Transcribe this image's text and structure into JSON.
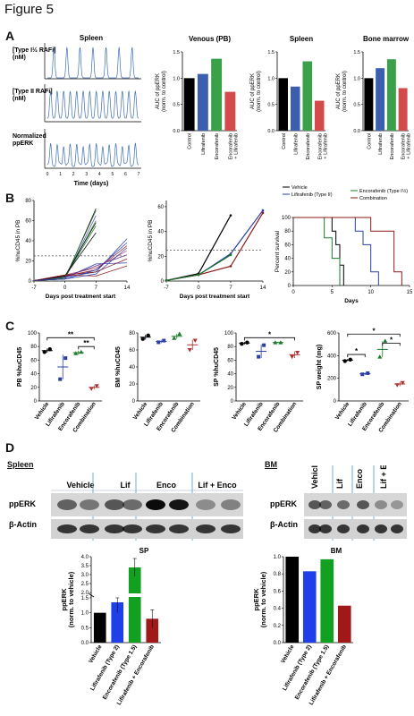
{
  "figure_title": "Figure 5",
  "panels": {
    "A": "A",
    "B": "B",
    "C": "C",
    "D": "D"
  },
  "panel_a": {
    "pk_title": "Spleen",
    "pk_rows": [
      "[Type I½ RAFi]\n(nM)",
      "[Type II RAFi]\n(nM)",
      "Normalized\nppERK"
    ],
    "pk_xticks": [
      "0",
      "1",
      "2",
      "3",
      "4",
      "5",
      "6",
      "7"
    ],
    "pk_xlabel": "Time (days)"
  },
  "chart_data": [
    {
      "id": "a-venous",
      "type": "bar",
      "title": "Venous (PB)",
      "ylabel": "AUC of ppERK\n(norm. to control)",
      "ylim": [
        0,
        1.5
      ],
      "yticks": [
        "0.0",
        "0.5",
        "1.0",
        "1.5"
      ],
      "categories": [
        "Control",
        "Lifirafenib",
        "Encorafenib",
        "Encorafenib\n+ Lifirafenib"
      ],
      "values": [
        1.0,
        1.08,
        1.37,
        0.74
      ],
      "colors": [
        "#000000",
        "#3b5fae",
        "#3aa04a",
        "#d34a4a"
      ]
    },
    {
      "id": "a-spleen",
      "type": "bar",
      "title": "Spleen",
      "ylabel": "AUC of ppERK\n(norm. to control)",
      "ylim": [
        0,
        1.5
      ],
      "yticks": [
        "0.0",
        "0.5",
        "1.0",
        "1.5"
      ],
      "categories": [
        "Control",
        "Lifirafenib",
        "Encorafenib",
        "Encorafenib\n+ Lifirafenib"
      ],
      "values": [
        1.0,
        0.84,
        1.32,
        0.57
      ],
      "colors": [
        "#000000",
        "#3b5fae",
        "#3aa04a",
        "#d34a4a"
      ]
    },
    {
      "id": "a-bm",
      "type": "bar",
      "title": "Bone marrow",
      "ylabel": "AUC of ppERK\n(norm. to control)",
      "ylim": [
        0,
        1.5
      ],
      "yticks": [
        "0.0",
        "0.5",
        "1.0",
        "1.5"
      ],
      "categories": [
        "Control",
        "Lifirafenib",
        "Encorafenib",
        "Encorafenib\n+ Lifirafenib"
      ],
      "values": [
        1.0,
        1.19,
        1.36,
        0.81
      ],
      "colors": [
        "#000000",
        "#3b5fae",
        "#3aa04a",
        "#d34a4a"
      ]
    },
    {
      "id": "b-indiv",
      "type": "line",
      "ylabel": "%huCD45 in PB",
      "xlabel": "Days post treatment start",
      "xticks": [
        -7,
        0,
        7,
        14
      ],
      "yticks": [
        0,
        20,
        40,
        60,
        80
      ],
      "ylim": [
        0,
        80
      ],
      "xlim": [
        -7,
        14
      ],
      "threshold": 25
    },
    {
      "id": "b-mean",
      "type": "line",
      "ylabel": "%huCD45 in PB",
      "xlabel": "Days post treatment start",
      "xticks": [
        -7,
        0,
        7,
        14
      ],
      "yticks": [
        0,
        20,
        40,
        60
      ],
      "ylim": [
        0,
        65
      ],
      "xlim": [
        -7,
        14
      ],
      "threshold": 25,
      "series": [
        {
          "color": "#000000",
          "x": [
            -7,
            0,
            7
          ],
          "y": [
            0.5,
            6,
            53
          ]
        },
        {
          "color": "#2c3fa6",
          "x": [
            -7,
            0,
            7,
            14
          ],
          "y": [
            0.5,
            5,
            22,
            57
          ]
        },
        {
          "color": "#8b1a1a",
          "x": [
            -7,
            0,
            7,
            14
          ],
          "y": [
            0.5,
            5,
            12,
            55
          ]
        },
        {
          "color": "#1a7a2a",
          "x": [
            -7,
            0,
            7
          ],
          "y": [
            0.5,
            5,
            21
          ]
        }
      ]
    },
    {
      "id": "b-survival",
      "type": "line",
      "ylabel": "Percent survival",
      "xlabel": "Days",
      "xticks": [
        0,
        5,
        10,
        15
      ],
      "yticks": [
        0,
        20,
        40,
        60,
        80,
        100
      ],
      "ylim": [
        0,
        100
      ],
      "xlim": [
        0,
        15
      ],
      "legend": [
        "Vehicle",
        "Lifirafenib (Type II)",
        "Encorafenib (Type I½)",
        "Combination"
      ],
      "series": [
        {
          "name": "Vehicle",
          "color": "#000000",
          "x": [
            0,
            4,
            5,
            5.5,
            6,
            6.5
          ],
          "y": [
            100,
            100,
            80,
            60,
            30,
            0
          ]
        },
        {
          "name": "Lifirafenib (Type II)",
          "color": "#2c3fa6",
          "x": [
            0,
            7,
            8,
            9,
            10,
            11
          ],
          "y": [
            100,
            100,
            80,
            60,
            20,
            0
          ]
        },
        {
          "name": "Encorafenib (Type I½)",
          "color": "#1a7a2a",
          "x": [
            0,
            3,
            4,
            5,
            6
          ],
          "y": [
            100,
            100,
            70,
            40,
            0
          ]
        },
        {
          "name": "Combination",
          "color": "#8b1a1a",
          "x": [
            0,
            9,
            10,
            12,
            13,
            14
          ],
          "y": [
            100,
            100,
            80,
            80,
            20,
            0
          ]
        }
      ]
    },
    {
      "id": "c-pb",
      "type": "scatter",
      "ylabel": "PB %huCD45",
      "ylim": [
        0,
        100
      ],
      "yticks": [
        "0",
        "20",
        "40",
        "60",
        "80",
        "100"
      ],
      "categories": [
        "Vehicle",
        "Lifirafenib",
        "Encorafenib",
        "Combination"
      ],
      "means": [
        74,
        50,
        71,
        20
      ],
      "errs": [
        3,
        18,
        3,
        3
      ],
      "points": [
        [
          72,
          76
        ],
        [
          32,
          63
        ],
        [
          70,
          72
        ],
        [
          18,
          22
        ]
      ],
      "colors": [
        "#000000",
        "#2c3fa6",
        "#1a7a2a",
        "#b03030"
      ],
      "brackets": [
        {
          "from": 0,
          "to": 3,
          "y": 93,
          "label": "**"
        },
        {
          "from": 2,
          "to": 3,
          "y": 80,
          "label": "**"
        }
      ]
    },
    {
      "id": "c-bm",
      "type": "scatter",
      "ylabel": "BM %huCD45",
      "ylim": [
        0,
        80
      ],
      "yticks": [
        "0",
        "20",
        "40",
        "60",
        "80"
      ],
      "categories": [
        "Vehicle",
        "Lifirafenib",
        "Encorafenib",
        "Combination"
      ],
      "means": [
        75,
        70,
        76,
        66
      ],
      "errs": [
        3,
        2,
        3,
        6
      ],
      "points": [
        [
          73,
          77
        ],
        [
          69,
          71
        ],
        [
          74,
          79
        ],
        [
          60,
          71
        ]
      ],
      "colors": [
        "#000000",
        "#2c3fa6",
        "#1a7a2a",
        "#b03030"
      ],
      "brackets": []
    },
    {
      "id": "c-sp",
      "type": "scatter",
      "ylabel": "SP %huCD45",
      "ylim": [
        0,
        100
      ],
      "yticks": [
        "0",
        "20",
        "40",
        "60",
        "80",
        "100"
      ],
      "categories": [
        "Vehicle",
        "Lifirafenib",
        "Encorafenib",
        "Combination"
      ],
      "means": [
        85,
        73,
        86,
        68
      ],
      "errs": [
        2,
        10,
        1,
        5
      ],
      "points": [
        [
          84,
          86
        ],
        [
          65,
          82
        ],
        [
          86,
          86
        ],
        [
          65,
          71
        ]
      ],
      "colors": [
        "#000000",
        "#2c3fa6",
        "#1a7a2a",
        "#b03030"
      ],
      "brackets": [
        {
          "from": 0,
          "to": 3,
          "y": 93,
          "label": "*"
        }
      ]
    },
    {
      "id": "c-spw",
      "type": "scatter",
      "ylabel": "SP weight (mg)",
      "ylim": [
        0,
        600
      ],
      "yticks": [
        "0",
        "200",
        "400",
        "600"
      ],
      "categories": [
        "Vehicle",
        "Lifirafenib",
        "Encorafenib",
        "Combination"
      ],
      "means": [
        360,
        240,
        455,
        150
      ],
      "errs": [
        10,
        10,
        70,
        20
      ],
      "points": [
        [
          352,
          365
        ],
        [
          235,
          245
        ],
        [
          390,
          530
        ],
        [
          140,
          160
        ]
      ],
      "colors": [
        "#000000",
        "#2c3fa6",
        "#1a7a2a",
        "#b03030"
      ],
      "brackets": [
        {
          "from": 0,
          "to": 3,
          "y": 590,
          "label": "*"
        },
        {
          "from": 0,
          "to": 1,
          "y": 410,
          "label": "*"
        },
        {
          "from": 2,
          "to": 3,
          "y": 510,
          "label": "*"
        }
      ]
    },
    {
      "id": "d-sp",
      "type": "bar",
      "title": "SP",
      "ylabel": "ppERK\n(norm. to vehicle)",
      "categories": [
        "Vehicle",
        "Lifirafenib (Type 2)",
        "Encorafenib (Type 1.5)",
        "Lifirafenib + Encorafenib"
      ],
      "values": [
        1.0,
        1.35,
        3.4,
        0.8
      ],
      "errs": [
        0,
        0.35,
        0.5,
        0.3
      ],
      "yticks": [
        "0.0",
        "0.5",
        "1.0",
        "1.5",
        "2.0",
        "2.5",
        "3.0",
        "3.5",
        "4.0"
      ],
      "colors": [
        "#000000",
        "#1f3fe8",
        "#12a020",
        "#a01818"
      ]
    },
    {
      "id": "d-bm",
      "type": "bar",
      "title": "BM",
      "ylabel": "ppERK\n(norm. to vehicle)",
      "ylim": [
        0,
        1.0
      ],
      "categories": [
        "Vehicle",
        "Lifirafenib (Type 2)",
        "Encorafenib (Type 1.5)",
        "Lifirafenib + Encorafenib"
      ],
      "values": [
        1.0,
        0.83,
        0.97,
        0.43
      ],
      "yticks": [
        "0.0",
        "0.2",
        "0.4",
        "0.6",
        "0.8",
        "1.0"
      ],
      "colors": [
        "#000000",
        "#1f3fe8",
        "#12a020",
        "#a01818"
      ]
    }
  ],
  "panel_d": {
    "spleen_head": "Spleen",
    "bm_head": "BM",
    "spleen_lanes": [
      "Vehicle",
      "Lif",
      "Enco",
      "Lif + Enco"
    ],
    "bm_lanes": [
      "Vehicle",
      "Lif",
      "Enco",
      "Lif + Enco"
    ],
    "rows": [
      "ppERK",
      "β-Actin"
    ]
  }
}
